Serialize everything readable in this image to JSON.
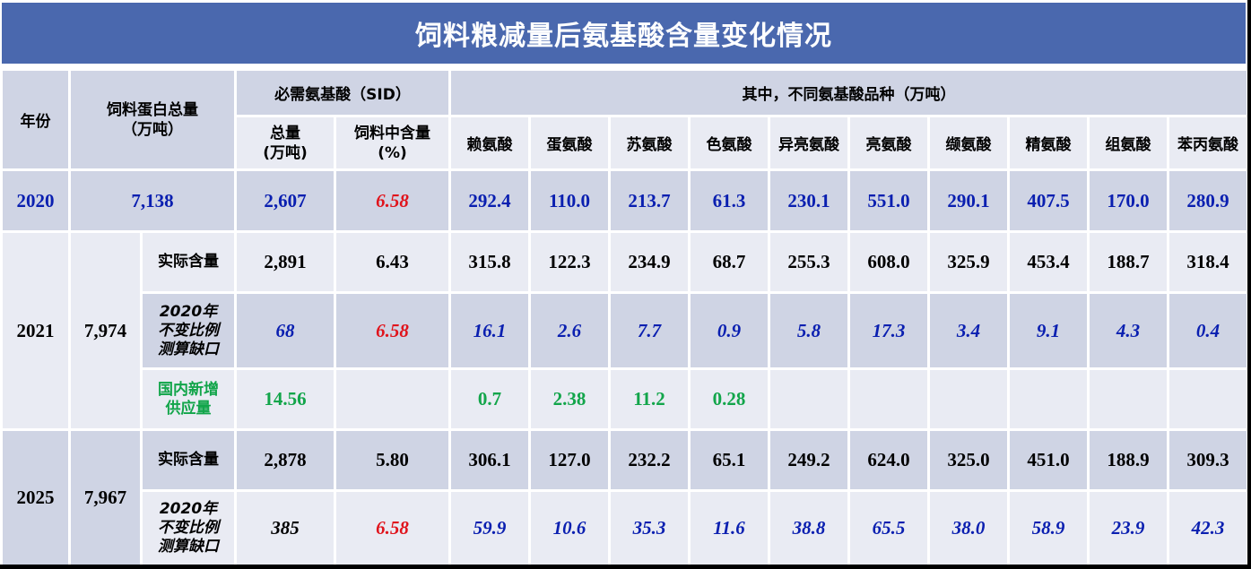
{
  "title": "饲料粮减量后氨基酸含量变化情况",
  "header": {
    "year": "年份",
    "protein_total": "饲料蛋白总量\n（万吨）",
    "sid": "必需氨基酸（SID）",
    "breakdown": "其中，不同氨基酸品种（万吨）",
    "sid_total": "总量\n(万吨)",
    "sid_pct": "饲料中含量\n(%)",
    "amino_acids": [
      "赖氨酸",
      "蛋氨酸",
      "苏氨酸",
      "色氨酸",
      "异亮氨酸",
      "亮氨酸",
      "缬氨酸",
      "精氨酸",
      "组氨酸",
      "苯丙氨酸"
    ]
  },
  "rows": {
    "y2020": {
      "year": "2020",
      "protein": "7,138",
      "total": "2,607",
      "pct": "6.58",
      "values": [
        "292.4",
        "110.0",
        "213.7",
        "61.3",
        "230.1",
        "551.0",
        "290.1",
        "407.5",
        "170.0",
        "280.9"
      ]
    },
    "y2021": {
      "year": "2021",
      "protein": "7,974",
      "actual": {
        "label": "实际含量",
        "total": "2,891",
        "pct": "6.43",
        "values": [
          "315.8",
          "122.3",
          "234.9",
          "68.7",
          "255.3",
          "608.0",
          "325.9",
          "453.4",
          "188.7",
          "318.4"
        ]
      },
      "gap": {
        "label": "2020年不变比例测算缺口",
        "total": "68",
        "pct": "6.58",
        "values": [
          "16.1",
          "2.6",
          "7.7",
          "0.9",
          "5.8",
          "17.3",
          "3.4",
          "9.1",
          "4.3",
          "0.4"
        ]
      },
      "supply": {
        "label": "国内新增供应量",
        "total": "14.56",
        "pct": "",
        "values": [
          "0.7",
          "2.38",
          "11.2",
          "0.28",
          "",
          "",
          "",
          "",
          "",
          ""
        ]
      }
    },
    "y2025": {
      "year": "2025",
      "protein": "7,967",
      "actual": {
        "label": "实际含量",
        "total": "2,878",
        "pct": "5.80",
        "values": [
          "306.1",
          "127.0",
          "232.2",
          "65.1",
          "249.2",
          "624.0",
          "325.0",
          "451.0",
          "188.9",
          "309.3"
        ]
      },
      "gap": {
        "label": "2020年不变比例测算缺口",
        "total": "385",
        "pct": "6.58",
        "values": [
          "59.9",
          "10.6",
          "35.3",
          "11.6",
          "38.8",
          "65.5",
          "38.0",
          "58.9",
          "23.9",
          "42.3"
        ]
      }
    }
  },
  "colors": {
    "title_bg": "#4a68ae",
    "dark_row": "#cfd4e4",
    "light_row": "#e9ebf3",
    "blue": "#0a1fb0",
    "red": "#e0141c",
    "green": "#12a54a"
  }
}
